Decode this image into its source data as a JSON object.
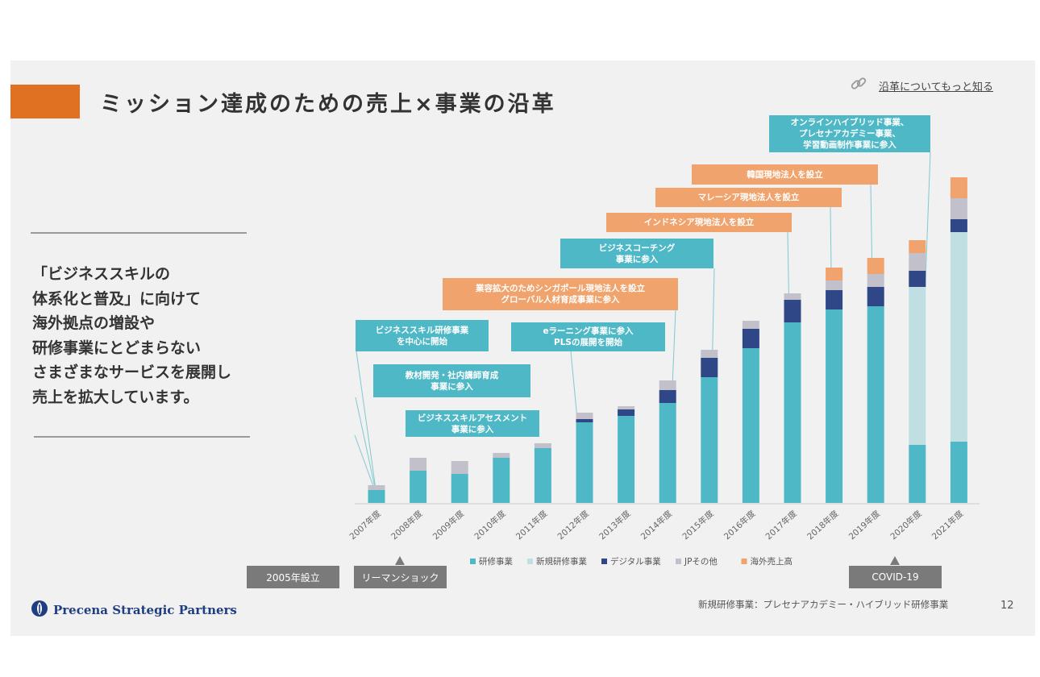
{
  "slide": {
    "title": "ミッション達成のための売上×事業の沿革",
    "link_label": "沿革についてもっと知る",
    "message_lines": [
      "「ビジネススキルの",
      "体系化と普及」に向けて",
      "海外拠点の増設や",
      "研修事業にとどまらない",
      "さまざまなサービスを展開し",
      "売上を拡大しています。"
    ],
    "company": "Precena Strategic Partners",
    "footnote": "新規研修事業：プレセナアカデミー・ハイブリッド研修事業",
    "page_number": "12"
  },
  "annotations": [
    {
      "lines": [
        "ビジネススキル研修事業",
        "を中心に開始"
      ],
      "color": "teal"
    },
    {
      "lines": [
        "教材開発・社内講師育成",
        "事業に参入"
      ],
      "color": "teal"
    },
    {
      "lines": [
        "ビジネススキルアセスメント",
        "事業に参入"
      ],
      "color": "teal"
    },
    {
      "lines": [
        "eラーニング事業に参入",
        "PLSの展開を開始"
      ],
      "color": "teal"
    },
    {
      "lines": [
        "業容拡大のためシンガポール現地法人を設立",
        "グローバル人材育成事業に参入"
      ],
      "color": "orange"
    },
    {
      "lines": [
        "ビジネスコーチング",
        "事業に参入"
      ],
      "color": "teal"
    },
    {
      "lines": [
        "インドネシア現地法人を設立"
      ],
      "color": "orange"
    },
    {
      "lines": [
        "マレーシア現地法人を設立"
      ],
      "color": "orange"
    },
    {
      "lines": [
        "韓国現地法人を設立"
      ],
      "color": "orange"
    },
    {
      "lines": [
        "オンラインハイブリッド事業、",
        "プレセナアカデミー事業、",
        "学習動画制作事業に参入"
      ],
      "color": "teal"
    }
  ],
  "timeline_boxes": [
    "2005年設立",
    "リーマンショック",
    "COVID-19"
  ],
  "colors": {
    "accent": "#e07122",
    "teal": "#4fb8c6",
    "light_teal": "#bfdfe3",
    "navy": "#2f4786",
    "gray": "#c2c0cb",
    "orange": "#f0a36c"
  },
  "chart_data": {
    "type": "bar",
    "stacked": true,
    "categories": [
      "2007年度",
      "2008年度",
      "2009年度",
      "2010年度",
      "2011年度",
      "2012年度",
      "2013年度",
      "2014年度",
      "2015年度",
      "2016年度",
      "2017年度",
      "2018年度",
      "2019年度",
      "2020年度",
      "2021年度"
    ],
    "series": [
      {
        "name": "研修事業",
        "color": "#4fb8c6",
        "values": [
          4,
          10,
          9,
          14,
          17,
          25,
          27,
          31,
          39,
          48,
          56,
          60,
          61,
          18,
          19
        ]
      },
      {
        "name": "新規研修事業",
        "color": "#bfdfe3",
        "values": [
          0,
          0,
          0,
          0,
          0,
          0,
          0,
          0,
          0,
          0,
          0,
          0,
          0,
          49,
          65
        ]
      },
      {
        "name": "デジタル事業",
        "color": "#2f4786",
        "values": [
          0,
          0,
          0,
          0,
          0,
          1,
          2,
          4,
          6,
          6,
          7,
          6,
          6,
          5,
          4
        ]
      },
      {
        "name": "JPその他",
        "color": "#c2c0cb",
        "values": [
          1.5,
          4,
          4,
          1.5,
          1.5,
          2,
          1,
          3,
          2.5,
          2.5,
          2,
          3,
          4,
          5.5,
          6.5
        ]
      },
      {
        "name": "海外売上高",
        "color": "#f0a36c",
        "values": [
          0,
          0,
          0,
          0,
          0,
          0,
          0,
          0,
          0,
          0,
          0,
          4,
          5,
          4,
          6.5
        ]
      }
    ],
    "ylim": [
      0,
      102
    ],
    "xlabel": "",
    "ylabel": "",
    "legend_position": "bottom"
  }
}
